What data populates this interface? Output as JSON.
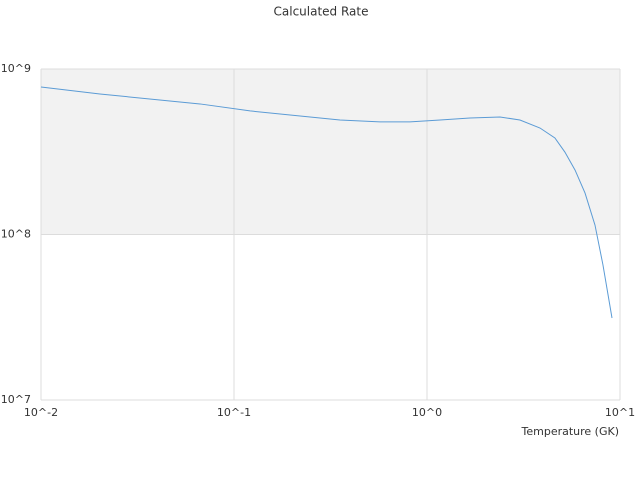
{
  "chart_data": {
    "type": "line",
    "title": "Calculated Rate",
    "x_label": "Temperature (GK)",
    "x": [
      0.01,
      0.0202,
      0.0667,
      0.121,
      0.354,
      0.57,
      0.816,
      1.17,
      1.67,
      2.39,
      3.03,
      3.85,
      4.6,
      5.18,
      5.85,
      6.59,
      7.42,
      8.16,
      9.09
    ],
    "values": [
      778000000,
      706000000,
      615000000,
      558000000,
      492000000,
      479000000,
      479000000,
      492000000,
      506000000,
      513000000,
      492000000,
      440000000,
      383000000,
      315000000,
      245000000,
      178000000,
      114000000,
      65500000,
      31300000
    ],
    "color": "#5b9bd5",
    "xlog": true,
    "ylog": true,
    "xlim": [
      0.01,
      10
    ],
    "ylim": [
      10000000,
      1000000000
    ],
    "xticks": [
      {
        "value": 0.01,
        "label": "10^-2"
      },
      {
        "value": 0.1,
        "label": "10^-1"
      },
      {
        "value": 1,
        "label": "10^0"
      },
      {
        "value": 10,
        "label": "10^1"
      }
    ],
    "yticks": [
      {
        "value": 10000000,
        "label": "10^7"
      },
      {
        "value": 100000000,
        "label": "10^8"
      },
      {
        "value": 1000000000,
        "label": "10^9"
      }
    ],
    "grid": true,
    "band_color": "#f2f2f2"
  }
}
